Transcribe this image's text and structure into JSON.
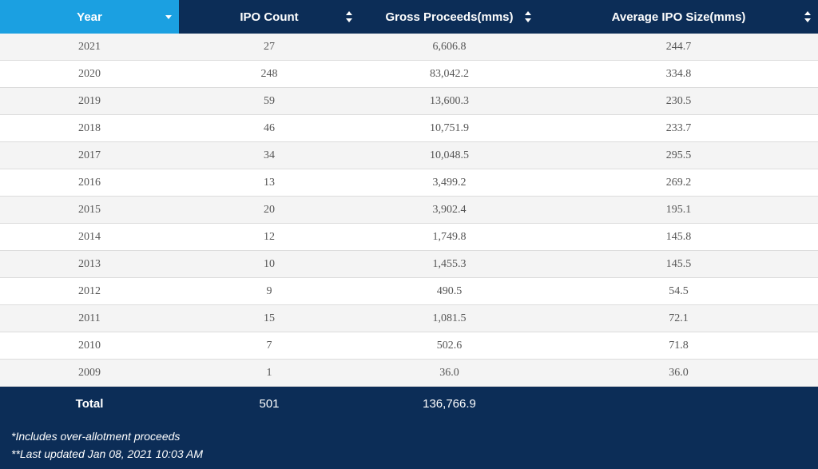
{
  "table": {
    "headers": {
      "year": "Year",
      "ipo_count": "IPO Count",
      "gross_proceeds": "Gross Proceeds(mms)",
      "avg_size": "Average IPO Size(mms)"
    },
    "rows": [
      {
        "year": "2021",
        "ipo_count": "27",
        "gross_proceeds": "6,606.8",
        "avg_size": "244.7"
      },
      {
        "year": "2020",
        "ipo_count": "248",
        "gross_proceeds": "83,042.2",
        "avg_size": "334.8"
      },
      {
        "year": "2019",
        "ipo_count": "59",
        "gross_proceeds": "13,600.3",
        "avg_size": "230.5"
      },
      {
        "year": "2018",
        "ipo_count": "46",
        "gross_proceeds": "10,751.9",
        "avg_size": "233.7"
      },
      {
        "year": "2017",
        "ipo_count": "34",
        "gross_proceeds": "10,048.5",
        "avg_size": "295.5"
      },
      {
        "year": "2016",
        "ipo_count": "13",
        "gross_proceeds": "3,499.2",
        "avg_size": "269.2"
      },
      {
        "year": "2015",
        "ipo_count": "20",
        "gross_proceeds": "3,902.4",
        "avg_size": "195.1"
      },
      {
        "year": "2014",
        "ipo_count": "12",
        "gross_proceeds": "1,749.8",
        "avg_size": "145.8"
      },
      {
        "year": "2013",
        "ipo_count": "10",
        "gross_proceeds": "1,455.3",
        "avg_size": "145.5"
      },
      {
        "year": "2012",
        "ipo_count": "9",
        "gross_proceeds": "490.5",
        "avg_size": "54.5"
      },
      {
        "year": "2011",
        "ipo_count": "15",
        "gross_proceeds": "1,081.5",
        "avg_size": "72.1"
      },
      {
        "year": "2010",
        "ipo_count": "7",
        "gross_proceeds": "502.6",
        "avg_size": "71.8"
      },
      {
        "year": "2009",
        "ipo_count": "1",
        "gross_proceeds": "36.0",
        "avg_size": "36.0"
      }
    ],
    "total": {
      "label": "Total",
      "ipo_count": "501",
      "gross_proceeds": "136,766.9"
    },
    "notes": [
      "*Includes over-allotment proceeds",
      "**Last updated Jan 08, 2021 10:03 AM"
    ]
  },
  "colors": {
    "header_bg": "#0c2d57",
    "active_sort_bg": "#1ba0e1",
    "row_alt_bg": "#f4f4f4"
  },
  "icons": {
    "active_sort": "caret-down-icon",
    "sortable": "sort-arrows-icon"
  }
}
